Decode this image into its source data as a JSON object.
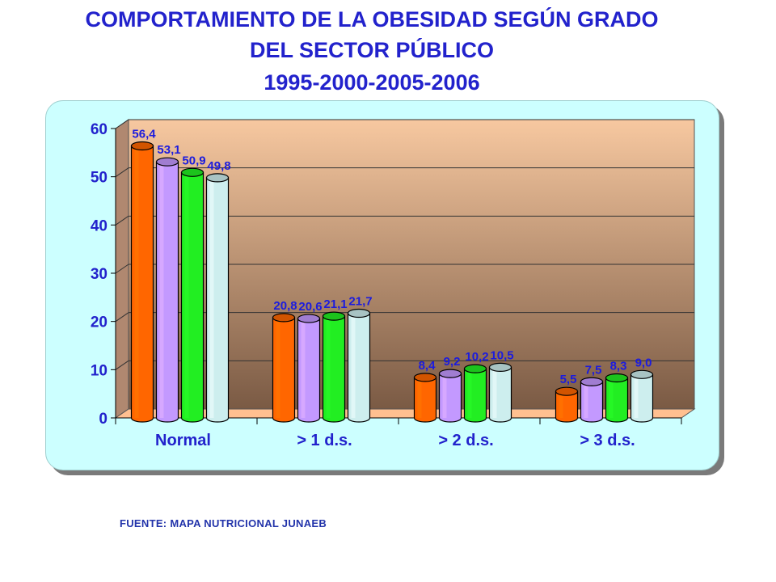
{
  "header": {
    "line1": "COMPORTAMIENTO DE LA OBESIDAD SEGÚN GRADO",
    "line2": "DEL SECTOR PÚBLICO",
    "line3": "1995-2000-2005-2006"
  },
  "footer": {
    "source": "FUENTE: MAPA NUTRICIONAL JUNAEB"
  },
  "chart_data": {
    "type": "bar",
    "title": "COMPORTAMIENTO DE LA OBESIDAD SEGÚN GRADO DEL SECTOR PÚBLICO 1995-2000-2005-2006",
    "xlabel": "",
    "ylabel": "",
    "ylim": [
      0,
      60
    ],
    "yticks": [
      "0",
      "10",
      "20",
      "30",
      "40",
      "50",
      "60"
    ],
    "categories": [
      "Normal",
      "> 1 d.s.",
      "> 2 d.s.",
      "> 3 d.s."
    ],
    "grid": true,
    "legend": "none",
    "series": [
      {
        "color": "#ff6600",
        "values": [
          56.4,
          20.8,
          8.4,
          5.5
        ],
        "labels": [
          "56,4",
          "20,8",
          "8,4",
          "5,5"
        ]
      },
      {
        "color": "#c399ff",
        "values": [
          53.1,
          20.6,
          9.2,
          7.5
        ],
        "labels": [
          "53,1",
          "20,6",
          "9,2",
          "7,5"
        ]
      },
      {
        "color": "#22ee22",
        "values": [
          50.9,
          21.1,
          10.2,
          8.3
        ],
        "labels": [
          "50,9",
          "21,1",
          "10,2",
          "8,3"
        ]
      },
      {
        "color": "#cdeeee",
        "values": [
          49.8,
          21.7,
          10.5,
          9.0
        ],
        "labels": [
          "49,8",
          "21,7",
          "10,5",
          "9,0"
        ]
      }
    ],
    "label_color": "#1c1cdd",
    "wall_color_top": "#f7c8a0",
    "wall_color_bottom": "#7a5a44",
    "floor_color": "#ffc090"
  }
}
